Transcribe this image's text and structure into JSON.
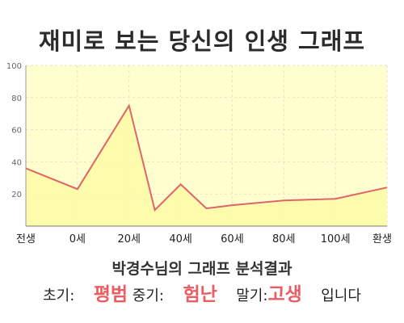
{
  "title": "재미로 보는 당신의 인생 그래프",
  "chart_data": {
    "type": "area",
    "y_ticks": [
      20,
      40,
      60,
      80,
      100
    ],
    "x_tick_labels": [
      "전생",
      "0세",
      "20세",
      "40세",
      "60세",
      "80세",
      "100세",
      "환생"
    ],
    "x": [
      -20,
      0,
      20,
      30,
      40,
      50,
      60,
      80,
      100,
      120
    ],
    "values": [
      36,
      23,
      75,
      10,
      26,
      11,
      13,
      16,
      17,
      24
    ],
    "ylim": [
      0,
      100
    ],
    "xlim": [
      -20,
      120
    ],
    "grid": true,
    "colors": {
      "line": "#e06468",
      "fill": "#fffecf",
      "grid": "#e6e3c6"
    }
  },
  "analysis": {
    "title": "박경수님의 그래프 분석결과",
    "early_label": "초기:",
    "early_value": "평범",
    "mid_label": "중기:",
    "mid_value": "험난",
    "late_label": "말기:",
    "late_value": "고생",
    "suffix": "입니다",
    "highlight_color": "#ea5d63"
  }
}
